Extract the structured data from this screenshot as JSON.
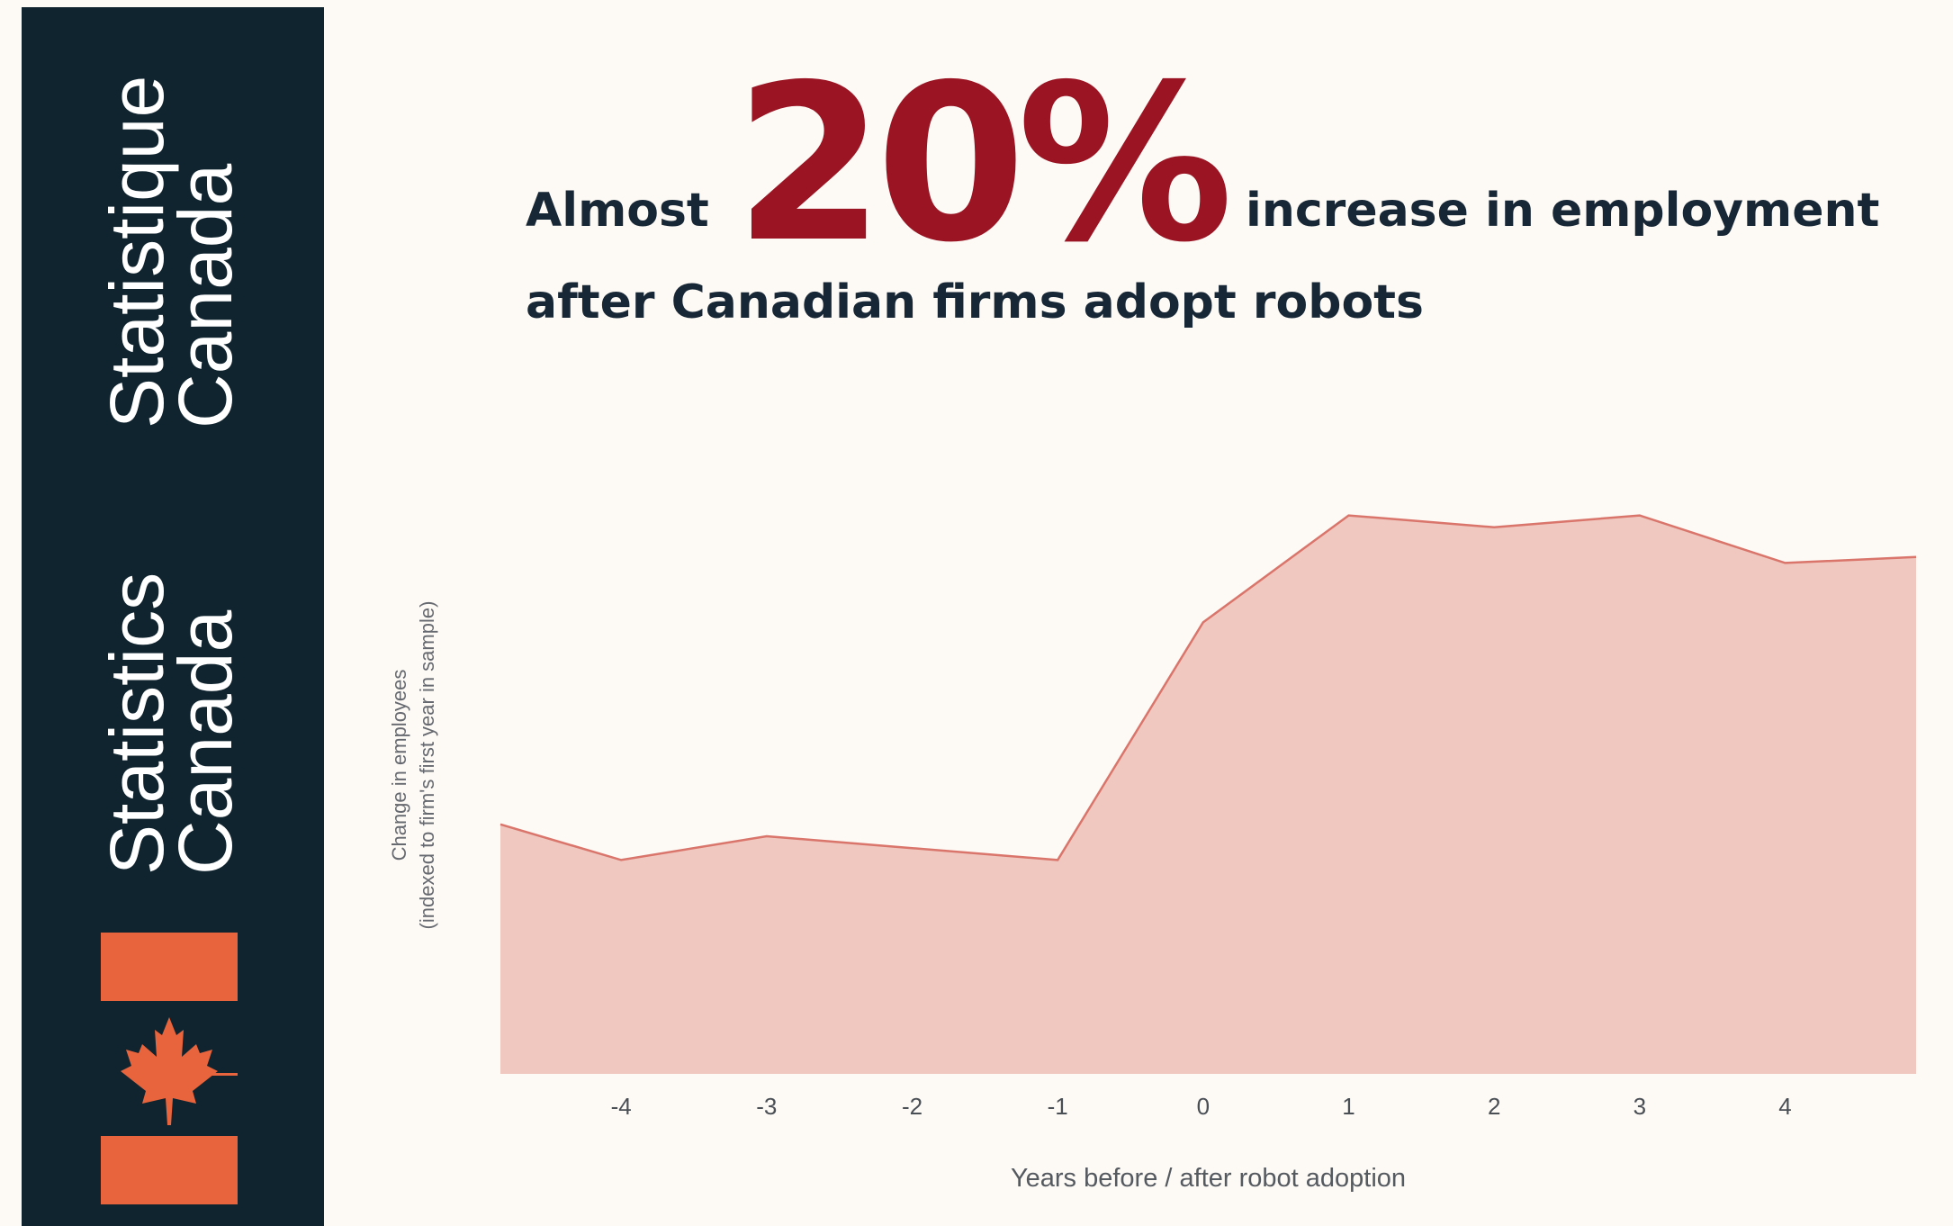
{
  "brand": {
    "fr_line1": "Statistique",
    "fr_line2": "Canada",
    "en_line1": "Statistics",
    "en_line2": "Canada",
    "flag_icon": "canada-flag-icon",
    "sidebar_color": "#10242f",
    "flag_color": "#e8643c"
  },
  "headline": {
    "lead": "Almost",
    "big_number": "20%",
    "tail": "increase in employment",
    "line2": "after Canadian firms adopt robots",
    "big_color": "#9a1423",
    "text_color": "#172735"
  },
  "chart_data": {
    "type": "area",
    "title": "",
    "xlabel": "Years before / after robot adoption",
    "ylabel_line1": "Change in employees",
    "ylabel_line2": "(indexed to firm's first year in sample)",
    "x": [
      -4.83,
      -4,
      -3,
      -2,
      -1,
      0,
      1,
      2,
      3,
      4,
      4.9
    ],
    "values": [
      1.05,
      1.02,
      1.04,
      1.03,
      1.02,
      1.22,
      1.31,
      1.3,
      1.31,
      1.27,
      1.275
    ],
    "x_ticks": [
      "-4",
      "-3",
      "-2",
      "-1",
      "0",
      "1",
      "2",
      "3",
      "4"
    ],
    "x_tick_values": [
      -4,
      -3,
      -2,
      -1,
      0,
      1,
      2,
      3,
      4
    ],
    "xlim": [
      -4.83,
      4.9
    ],
    "ylim": [
      0.84,
      1.365
    ],
    "grid": false,
    "fill_color": "#f0c8bf",
    "line_color": "#d9756b"
  }
}
